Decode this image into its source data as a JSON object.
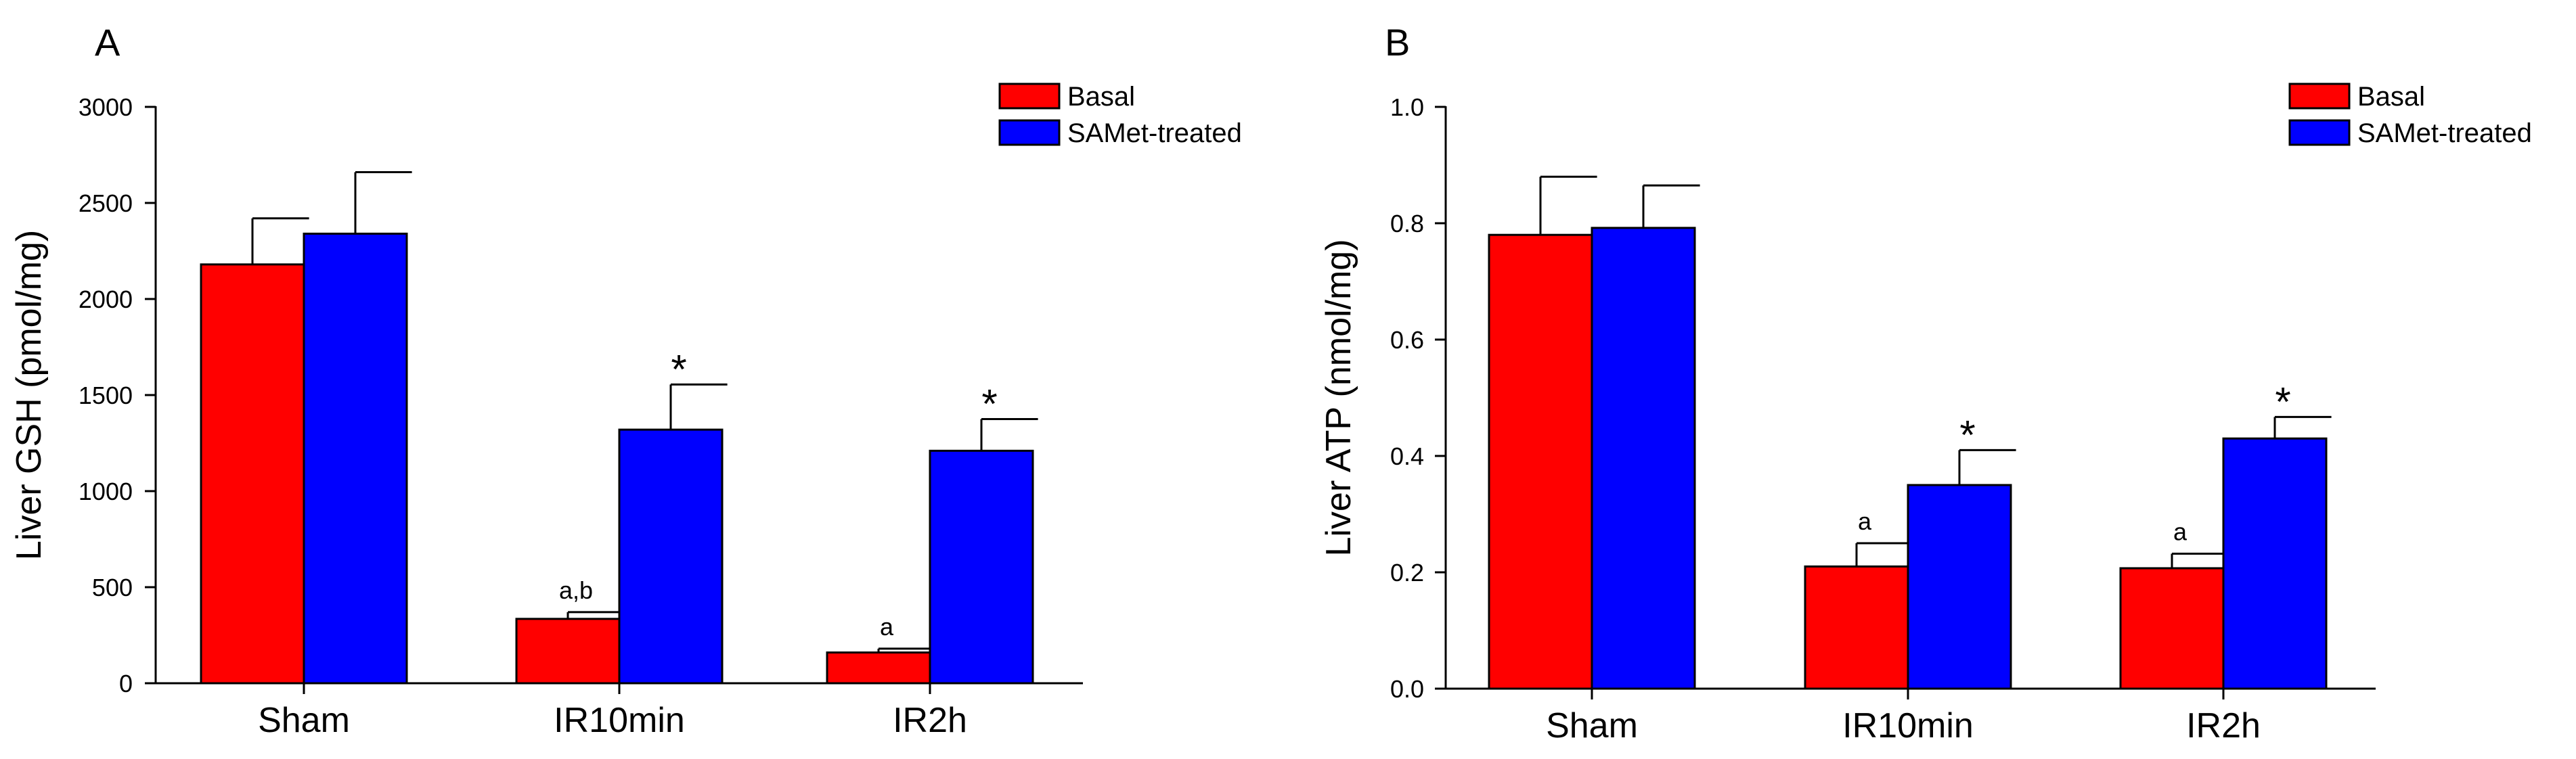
{
  "colors": {
    "basal": "#ff0000",
    "samet": "#0000ff",
    "outline": "#000000"
  },
  "chart_data": [
    {
      "type": "bar",
      "panel": "A",
      "title": "",
      "xlabel": "",
      "ylabel": "Liver GSH (pmol/mg)",
      "ylim": [
        0,
        3000
      ],
      "yticks": [
        0,
        500,
        1000,
        1500,
        2000,
        2500,
        3000
      ],
      "ytick_labels": [
        "0",
        "500",
        "1000",
        "1500",
        "2000",
        "2500",
        "3000"
      ],
      "categories": [
        "Sham",
        "IR10min",
        "IR2h"
      ],
      "legend_position": "top-right",
      "grid": false,
      "series": [
        {
          "name": "Basal",
          "color": "#ff0000",
          "values": [
            2180,
            335,
            160
          ],
          "errors": [
            240,
            35,
            20
          ],
          "labels": [
            "",
            "a,b",
            "a"
          ]
        },
        {
          "name": "SAMet-treated",
          "color": "#0000ff",
          "values": [
            2340,
            1320,
            1210
          ],
          "errors": [
            320,
            235,
            165
          ],
          "labels": [
            "",
            "*",
            "*"
          ]
        }
      ]
    },
    {
      "type": "bar",
      "panel": "B",
      "title": "",
      "xlabel": "",
      "ylabel": "Liver ATP (nmol/mg)",
      "ylim": [
        0,
        1.0
      ],
      "yticks": [
        0,
        0.2,
        0.4,
        0.6,
        0.8,
        1.0
      ],
      "ytick_labels": [
        "0.0",
        "0.2",
        "0.4",
        "0.6",
        "0.8",
        "1.0"
      ],
      "categories": [
        "Sham",
        "IR10min",
        "IR2h"
      ],
      "legend_position": "top-right",
      "grid": false,
      "series": [
        {
          "name": "Basal",
          "color": "#ff0000",
          "values": [
            0.78,
            0.21,
            0.207
          ],
          "errors": [
            0.1,
            0.04,
            0.025
          ],
          "labels": [
            "",
            "a",
            "a"
          ]
        },
        {
          "name": "SAMet-treated",
          "color": "#0000ff",
          "values": [
            0.792,
            0.35,
            0.43
          ],
          "errors": [
            0.073,
            0.06,
            0.037
          ],
          "labels": [
            "",
            "*",
            "*"
          ]
        }
      ]
    }
  ]
}
